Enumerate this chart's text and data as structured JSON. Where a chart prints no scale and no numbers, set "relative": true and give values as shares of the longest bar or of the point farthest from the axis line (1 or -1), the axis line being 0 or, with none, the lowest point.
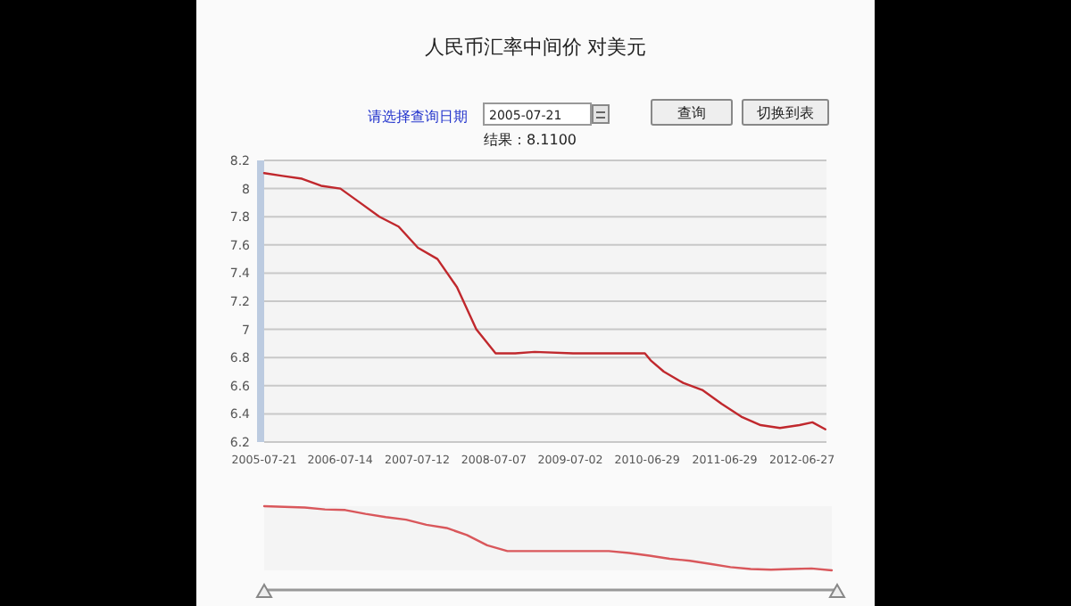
{
  "chart_data": [
    {
      "type": "line",
      "title": "人民币汇率中间价  对美元",
      "annotations": [
        "请选择查询日期",
        "2005-07-21",
        "查询",
        "切换到表",
        "结果：8.1100"
      ],
      "x": [
        "2005-07-21",
        "2005-10-15",
        "2006-01-15",
        "2006-04-15",
        "2006-07-15",
        "2006-10-15",
        "2007-01-15",
        "2007-04-15",
        "2007-07-15",
        "2007-10-15",
        "2008-01-15",
        "2008-04-15",
        "2008-07-15",
        "2008-10-15",
        "2009-01-15",
        "2009-07-15",
        "2010-01-15",
        "2010-06-18",
        "2010-07-15",
        "2010-09-15",
        "2010-12-15",
        "2011-03-15",
        "2011-06-15",
        "2011-09-15",
        "2011-12-15",
        "2012-03-15",
        "2012-06-15",
        "2012-08-15",
        "2012-10-15"
      ],
      "series": [
        {
          "color": "#c0282d",
          "values": [
            8.11,
            8.09,
            8.07,
            8.02,
            8.0,
            7.9,
            7.8,
            7.73,
            7.58,
            7.5,
            7.3,
            7.0,
            6.83,
            6.83,
            6.84,
            6.83,
            6.83,
            6.83,
            6.78,
            6.7,
            6.62,
            6.57,
            6.47,
            6.38,
            6.32,
            6.3,
            6.32,
            6.34,
            6.29
          ]
        }
      ],
      "xlim": [
        "2005-07-21",
        "2012-10-20"
      ],
      "xticks": [
        {
          "value": "2005-07-21",
          "label": "2005-07-21"
        },
        {
          "value": "2006-07-14",
          "label": "2006-07-14"
        },
        {
          "value": "2007-07-12",
          "label": "2007-07-12"
        },
        {
          "value": "2008-07-07",
          "label": "2008-07-07"
        },
        {
          "value": "2009-07-02",
          "label": "2009-07-02"
        },
        {
          "value": "2010-06-29",
          "label": "2010-06-29"
        },
        {
          "value": "2011-06-29",
          "label": "2011-06-29"
        },
        {
          "value": "2012-06-27",
          "label": "2012-06-27"
        }
      ],
      "ylim": [
        6.2,
        8.2
      ],
      "yticks": [
        6.2,
        6.4,
        6.6,
        6.8,
        7,
        7.2,
        7.4,
        7.6,
        7.8,
        8,
        8.2
      ],
      "grid": "y"
    },
    {
      "type": "line",
      "relative": true,
      "categories": [
        null,
        null,
        null,
        null,
        null,
        null,
        null,
        null,
        null,
        null,
        null,
        null,
        null,
        null,
        null,
        null,
        null,
        null,
        null,
        null,
        null,
        null,
        null,
        null,
        null,
        null,
        null,
        null,
        null
      ],
      "series": [
        {
          "color": "#d9575b",
          "values": [
            1,
            0.99,
            0.98,
            0.95,
            0.94,
            0.88,
            0.83,
            0.79,
            0.71,
            0.66,
            0.55,
            0.39,
            0.3,
            0.3,
            0.3,
            0.3,
            0.3,
            0.3,
            0.27,
            0.23,
            0.18,
            0.15,
            0.1,
            0.05,
            0.02,
            0.01,
            0.02,
            0.03,
            0
          ]
        }
      ]
    }
  ]
}
